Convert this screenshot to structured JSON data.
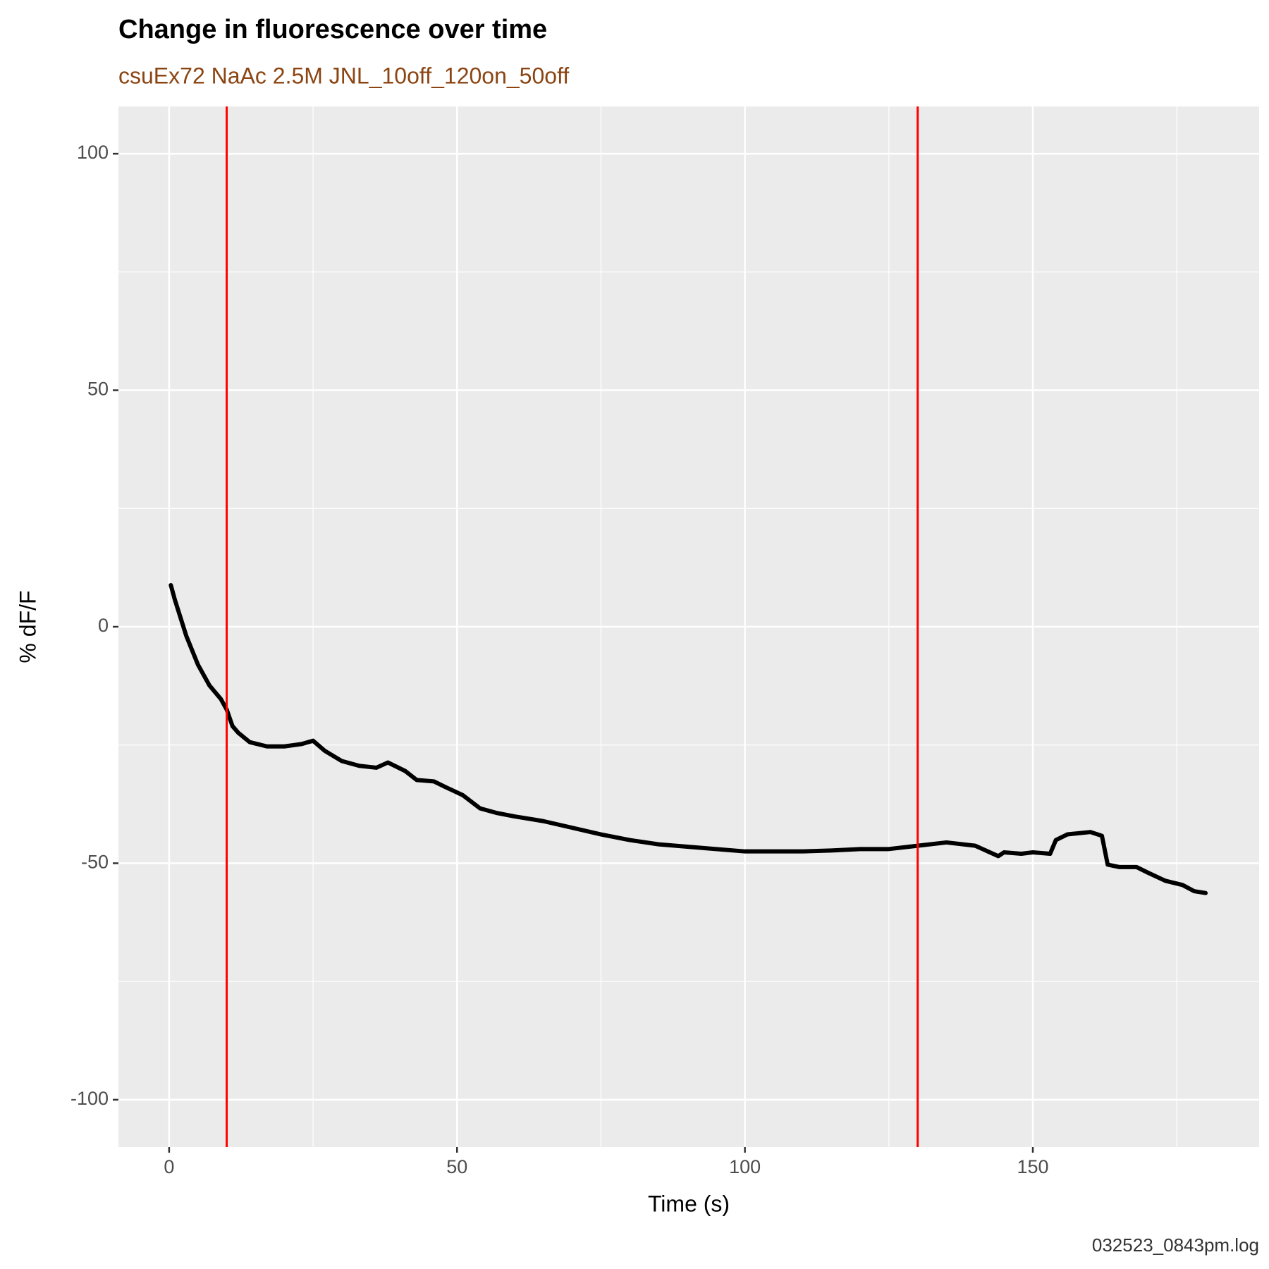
{
  "chart_data": {
    "type": "line",
    "title": "Change in fluorescence over time",
    "subtitle": "csuEx72 NaAc 2.5M JNL_10off_120on_50off",
    "x_label": "Time (s)",
    "y_label": "% dF/F",
    "caption": "032523_0843pm.log",
    "x": [
      0.3,
      1,
      3,
      5,
      7,
      9,
      10,
      11,
      12,
      14,
      17,
      20,
      23,
      25,
      27,
      30,
      33,
      36,
      38,
      41,
      43,
      46,
      48,
      51,
      54,
      57,
      60,
      65,
      70,
      75,
      80,
      85,
      90,
      95,
      100,
      105,
      110,
      115,
      120,
      125,
      130,
      135,
      140,
      144,
      145,
      148,
      150,
      153,
      154,
      156,
      160,
      162,
      163,
      165,
      168,
      170,
      173,
      176,
      178,
      180
    ],
    "series": [
      {
        "color": "#000000",
        "values": [
          8.8,
          5.7,
          -2,
          -8,
          -12.4,
          -15.3,
          -17.5,
          -21,
          -22.4,
          -24.4,
          -25.3,
          -25.3,
          -24.8,
          -24.1,
          -26.2,
          -28.4,
          -29.4,
          -29.8,
          -28.7,
          -30.5,
          -32.4,
          -32.7,
          -33.9,
          -35.6,
          -38.4,
          -39.4,
          -40.1,
          -41.1,
          -42.5,
          -43.9,
          -45.1,
          -46,
          -46.5,
          -47,
          -47.5,
          -47.5,
          -47.5,
          -47.3,
          -47,
          -47,
          -46.3,
          -45.6,
          -46.3,
          -48.5,
          -47.7,
          -48,
          -47.7,
          -48,
          -45.1,
          -43.9,
          -43.4,
          -44.2,
          -50.3,
          -50.8,
          -50.8,
          -52,
          -53.7,
          -54.6,
          -55.9,
          -56.3
        ]
      }
    ],
    "vlines": [
      10,
      130
    ],
    "vline_color": "#ff0000",
    "xlim": [
      -8.8,
      189.3
    ],
    "ylim": [
      -110,
      110
    ],
    "xticks": [
      0,
      50,
      100,
      150
    ],
    "yticks": [
      -100,
      -50,
      0,
      50,
      100
    ],
    "x_minor_grid": [
      25,
      75,
      125,
      175
    ],
    "y_minor_grid": [
      -75,
      -25,
      25,
      75
    ],
    "grid": true
  }
}
